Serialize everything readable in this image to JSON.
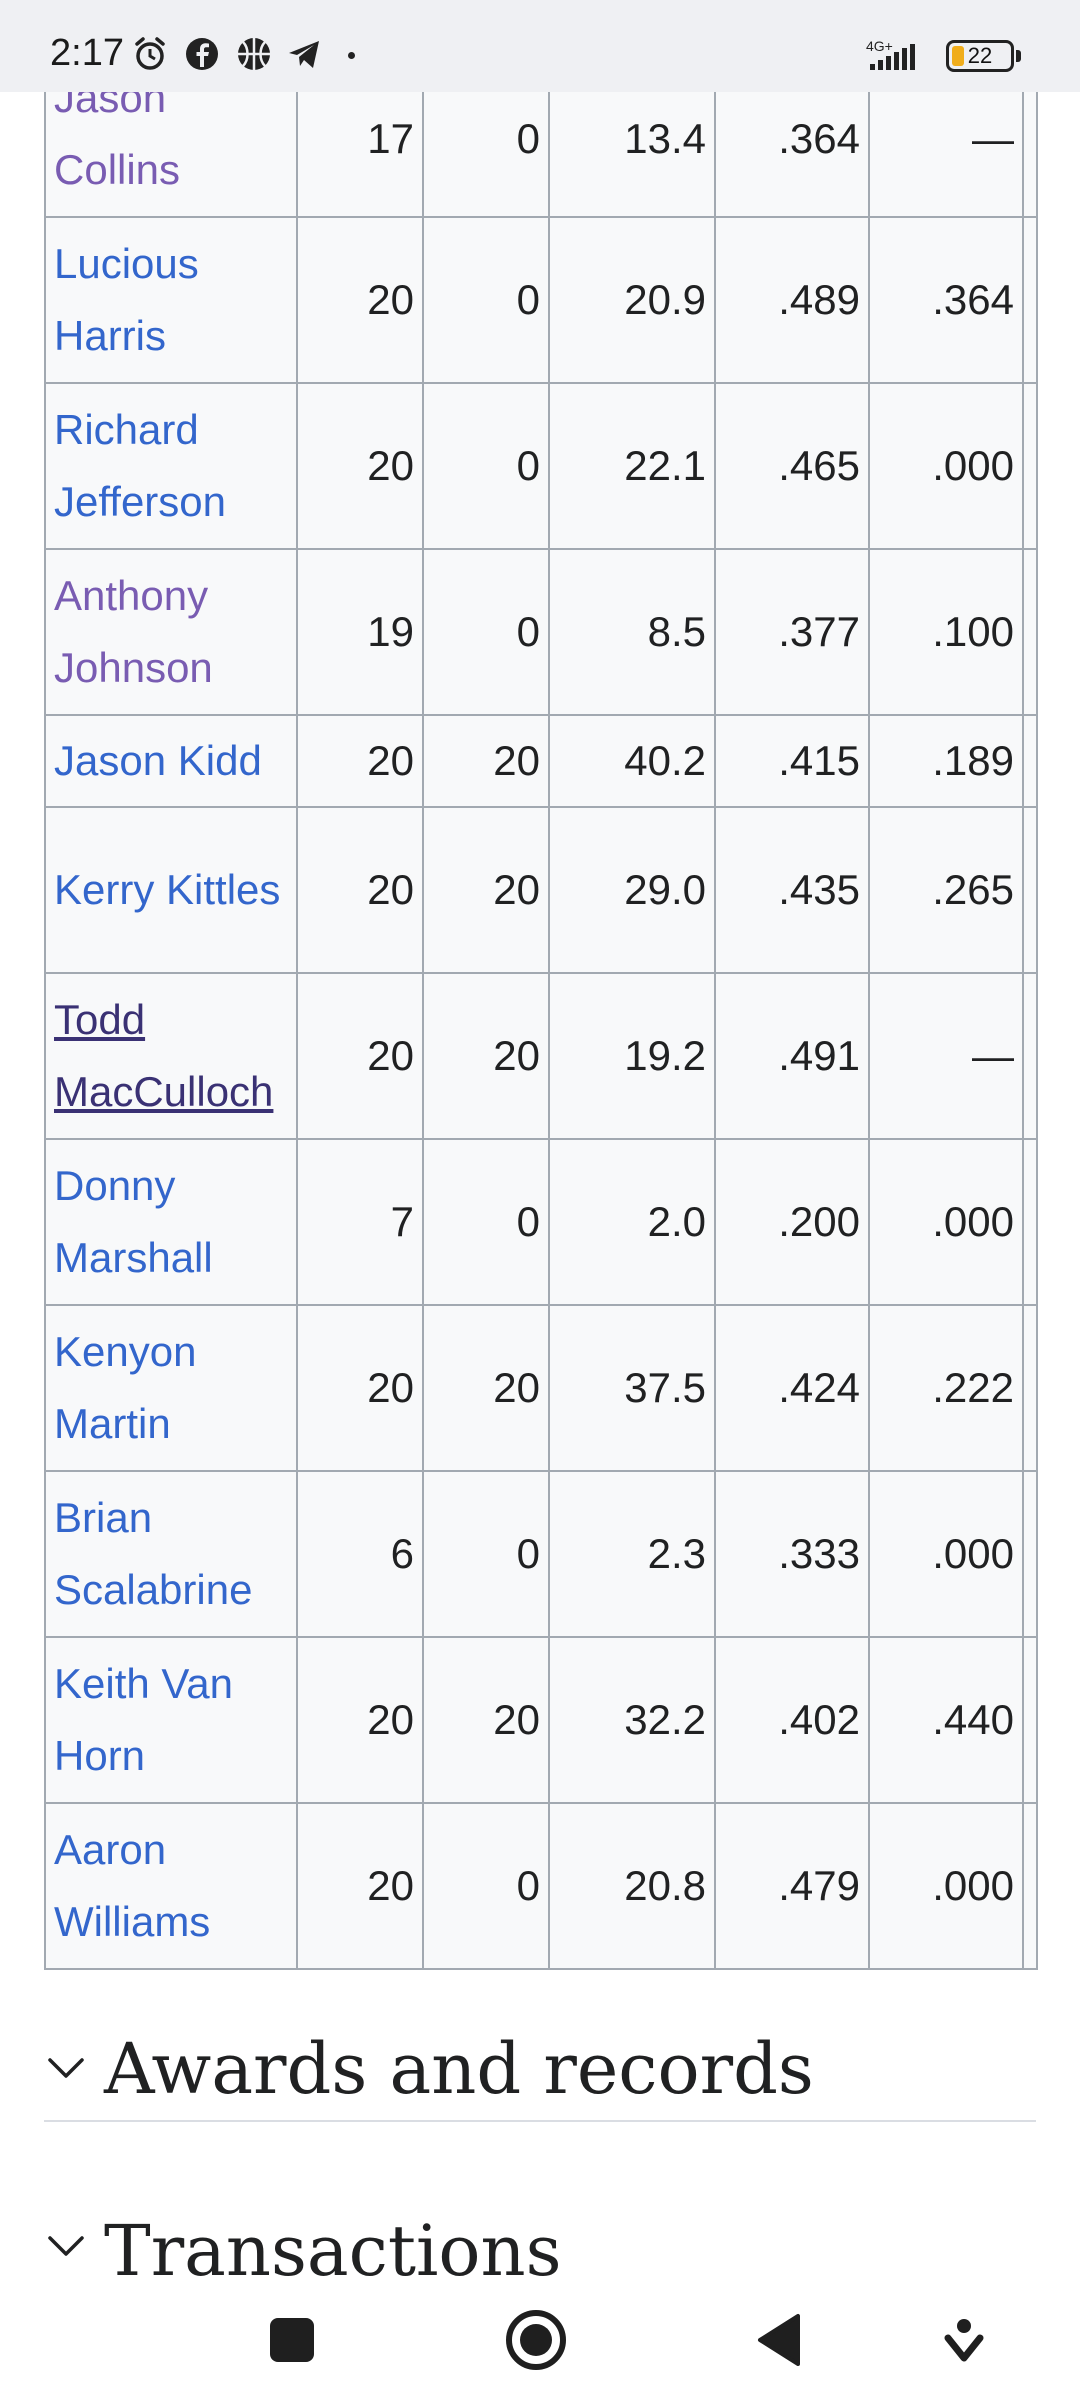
{
  "status_bar": {
    "time": "2:17",
    "network": "4G+",
    "battery_percent": "22",
    "battery_level": 0.22,
    "icons": [
      "alarm-icon",
      "facebook-icon",
      "basketball-icon",
      "telegram-icon"
    ]
  },
  "table": {
    "rows": [
      {
        "player": "Jason Collins",
        "gp": "17",
        "gs": "0",
        "mpg": "13.4",
        "fg": ".364",
        "three": "—",
        "link_state": "visited"
      },
      {
        "player": "Lucious Harris",
        "gp": "20",
        "gs": "0",
        "mpg": "20.9",
        "fg": ".489",
        "three": ".364",
        "link_state": "normal"
      },
      {
        "player": "Richard Jefferson",
        "gp": "20",
        "gs": "0",
        "mpg": "22.1",
        "fg": ".465",
        "three": ".000",
        "link_state": "normal"
      },
      {
        "player": "Anthony Johnson",
        "gp": "19",
        "gs": "0",
        "mpg": "8.5",
        "fg": ".377",
        "three": ".100",
        "link_state": "visited"
      },
      {
        "player": "Jason Kidd",
        "gp": "20",
        "gs": "20",
        "mpg": "40.2",
        "fg": ".415",
        "three": ".189",
        "link_state": "normal"
      },
      {
        "player": "Kerry Kittles",
        "gp": "20",
        "gs": "20",
        "mpg": "29.0",
        "fg": ".435",
        "three": ".265",
        "link_state": "normal"
      },
      {
        "player": "Todd MacCulloch",
        "gp": "20",
        "gs": "20",
        "mpg": "19.2",
        "fg": ".491",
        "three": "—",
        "link_state": "pressed"
      },
      {
        "player": "Donny Marshall",
        "gp": "7",
        "gs": "0",
        "mpg": "2.0",
        "fg": ".200",
        "three": ".000",
        "link_state": "normal"
      },
      {
        "player": "Kenyon Martin",
        "gp": "20",
        "gs": "20",
        "mpg": "37.5",
        "fg": ".424",
        "three": ".222",
        "link_state": "normal"
      },
      {
        "player": "Brian Scalabrine",
        "gp": "6",
        "gs": "0",
        "mpg": "2.3",
        "fg": ".333",
        "three": ".000",
        "link_state": "normal"
      },
      {
        "player": "Keith Van Horn",
        "gp": "20",
        "gs": "20",
        "mpg": "32.2",
        "fg": ".402",
        "three": ".440",
        "link_state": "normal"
      },
      {
        "player": "Aaron Williams",
        "gp": "20",
        "gs": "0",
        "mpg": "20.8",
        "fg": ".479",
        "three": ".000",
        "link_state": "normal"
      }
    ]
  },
  "sections": {
    "awards_title": "Awards and records",
    "transactions_title": "Transactions"
  },
  "colors": {
    "link": "#3366cc",
    "link_visited": "#795cb2",
    "link_pressed": "#3a3174",
    "table_border": "#a2a9b1",
    "table_bg": "#f8f9fa"
  },
  "nav_bar": {
    "buttons": [
      "recents-button",
      "home-button",
      "back-button",
      "assistant-button"
    ]
  }
}
